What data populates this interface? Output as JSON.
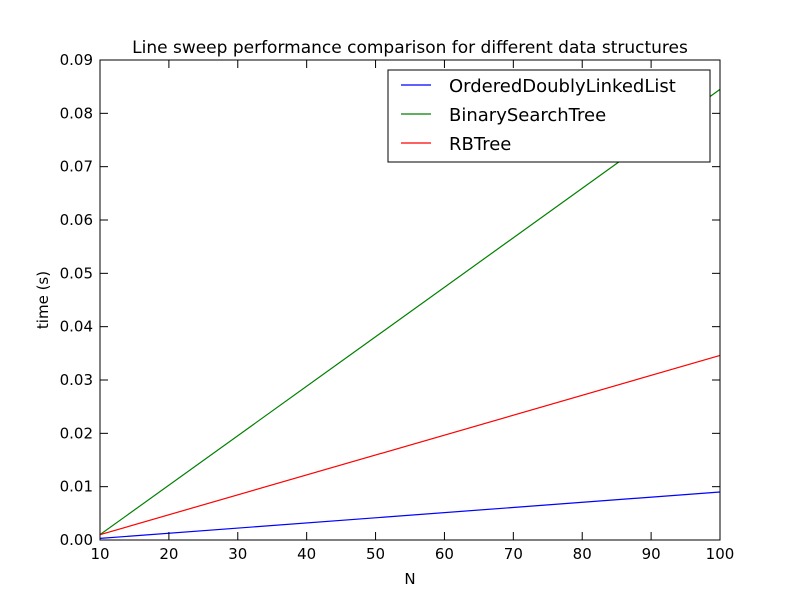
{
  "chart_data": {
    "type": "line",
    "title": "Line sweep performance comparison for different data structures",
    "xlabel": "N",
    "ylabel": "time (s)",
    "xlim": [
      10,
      100
    ],
    "ylim": [
      0,
      0.09
    ],
    "x_ticks": [
      10,
      20,
      30,
      40,
      50,
      60,
      70,
      80,
      90,
      100
    ],
    "y_ticks": [
      0.0,
      0.01,
      0.02,
      0.03,
      0.04,
      0.05,
      0.06,
      0.07,
      0.08,
      0.09
    ],
    "x_tick_labels": [
      "10",
      "20",
      "30",
      "40",
      "50",
      "60",
      "70",
      "80",
      "90",
      "100"
    ],
    "y_tick_labels": [
      "0.00",
      "0.01",
      "0.02",
      "0.03",
      "0.04",
      "0.05",
      "0.06",
      "0.07",
      "0.08",
      "0.09"
    ],
    "grid": false,
    "legend_position": "top-right",
    "x": [
      10,
      100
    ],
    "series": [
      {
        "name": "OrderedDoublyLinkedList",
        "color": "#0000ff",
        "values": [
          0.0003,
          0.009
        ]
      },
      {
        "name": "BinarySearchTree",
        "color": "#008000",
        "values": [
          0.001,
          0.0845
        ]
      },
      {
        "name": "RBTree",
        "color": "#ff0000",
        "values": [
          0.001,
          0.0346
        ]
      }
    ]
  }
}
